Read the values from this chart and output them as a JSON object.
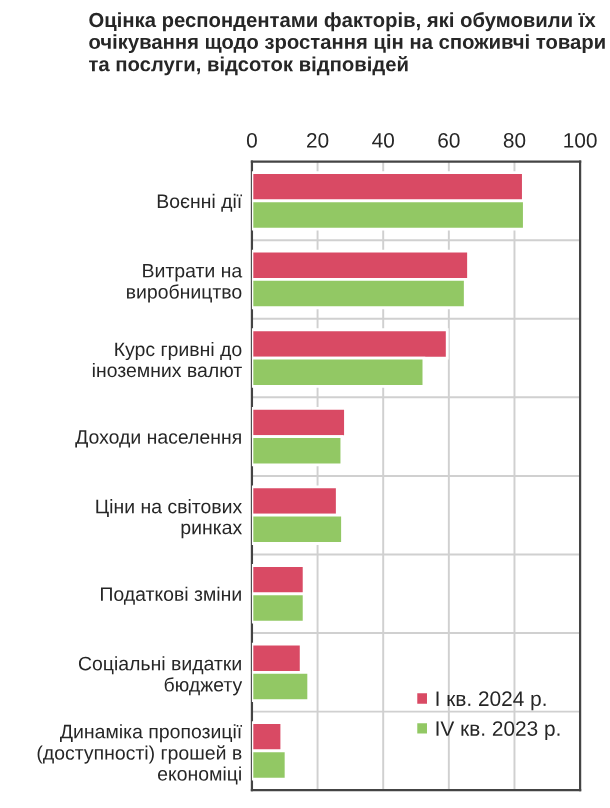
{
  "chart_data": {
    "type": "bar",
    "orientation": "horizontal",
    "title": "Оцінка респондентами факторів, які обумовили їх очікування щодо зростання цін на споживчі товари та послуги, відсоток відповідей",
    "categories": [
      "Воєнні дії",
      "Витрати на\nвиробництво",
      "Курс гривні до\nіноземних валют",
      "Доходи населення",
      "Ціни на світових\nринках",
      "Податкові зміни",
      "Соціальні видатки\nбюджету",
      "Динаміка пропозиції\n(доступності) грошей в\nекономіці"
    ],
    "series": [
      {
        "name": "І кв. 2024 р.",
        "color": "#d94a64",
        "values": [
          82.7,
          66,
          59.5,
          28.5,
          26,
          15.9,
          15,
          9.1
        ]
      },
      {
        "name": "ІV кв. 2023 р.",
        "color": "#92c864",
        "values": [
          83,
          65,
          52.4,
          27.4,
          27.6,
          15.9,
          17.3,
          10.4
        ]
      }
    ],
    "xlim": [
      0,
      100
    ],
    "xticks": [
      0,
      20,
      40,
      60,
      80,
      100
    ],
    "grid": true,
    "legend": "bottom right"
  }
}
